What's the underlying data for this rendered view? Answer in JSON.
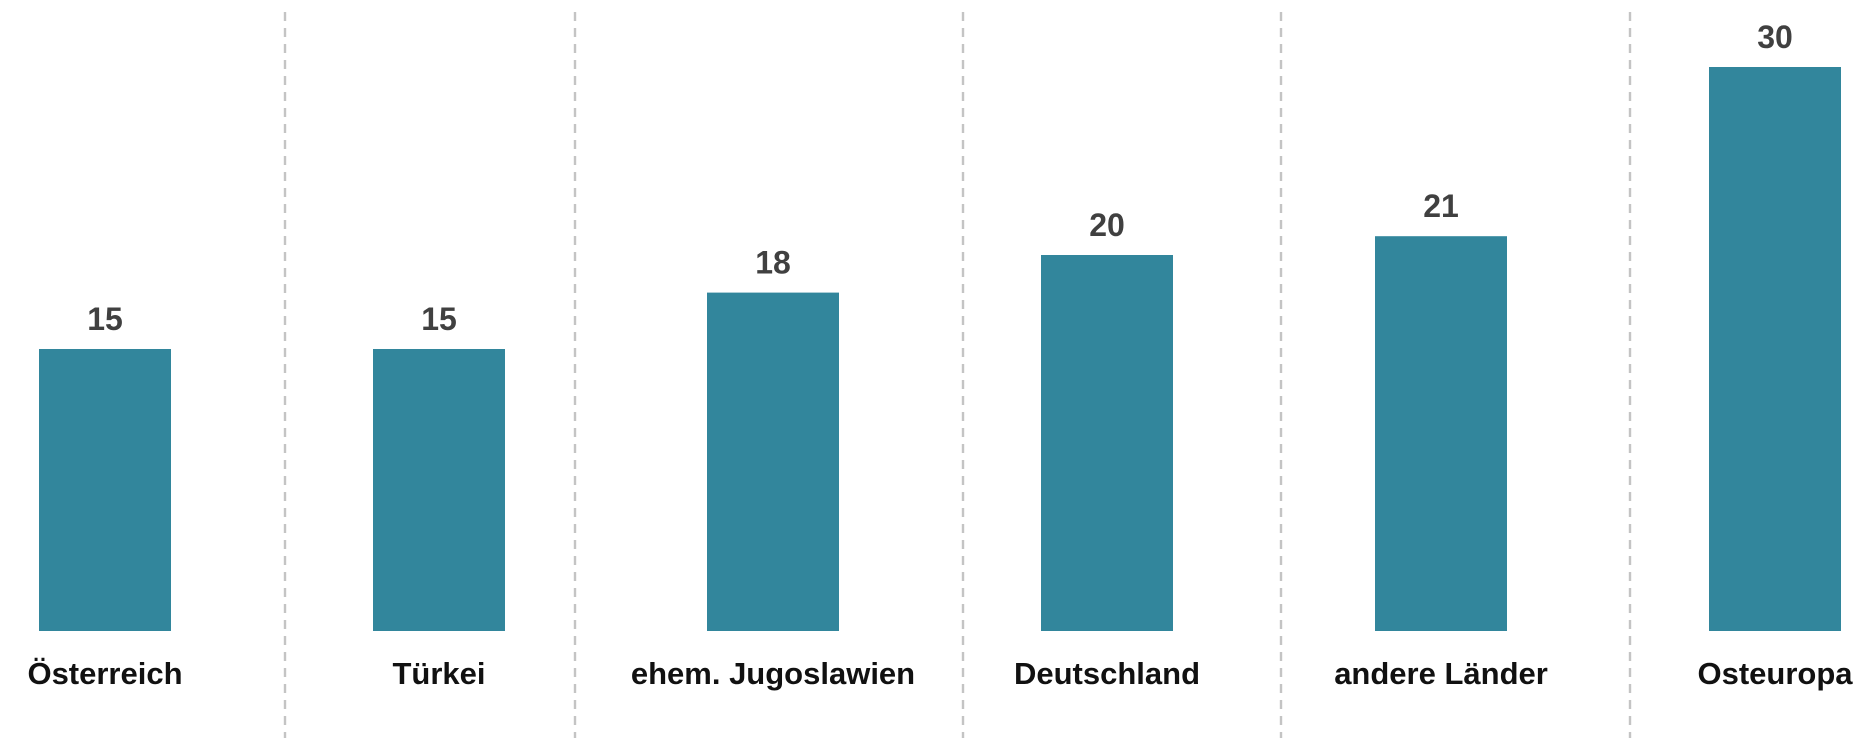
{
  "chart_data": {
    "type": "bar",
    "categories": [
      "Österreich",
      "Türkei",
      "ehem. Jugoslawien",
      "Deutschland",
      "andere Länder",
      "Osteuropa"
    ],
    "values": [
      15,
      15,
      18,
      20,
      21,
      30
    ],
    "color": "#32869c",
    "ylim": [
      0,
      30
    ]
  }
}
